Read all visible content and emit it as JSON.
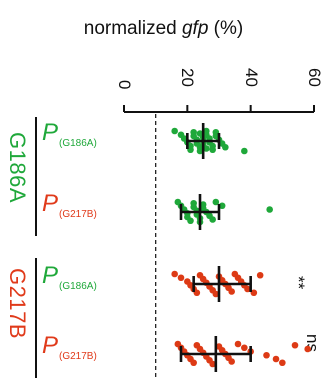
{
  "chart_data": {
    "type": "scatter",
    "title": "normalized",
    "title_italic": "gfp",
    "title_unit": " (%)",
    "value_axis": {
      "ticks": [
        "0",
        "20",
        "40",
        "60"
      ],
      "range": [
        0,
        60
      ],
      "orientation": "rotated-90"
    },
    "reference_line": {
      "value": 10,
      "style": "dashed"
    },
    "groups": [
      {
        "gene": "G186A",
        "gene_color": "#1fa83a",
        "rows": [
          {
            "promoter": "P",
            "variant": "(G186A)",
            "label_color": "#1fa83a",
            "point_color": "#1fa83a",
            "mean": 25,
            "sd_low": 20,
            "sd_high": 30,
            "points": [
              16,
              18,
              19,
              20,
              21,
              21,
              22,
              22,
              23,
              23,
              24,
              24,
              24,
              25,
              25,
              25,
              26,
              26,
              26,
              27,
              27,
              28,
              28,
              29,
              29,
              30,
              31,
              32,
              38
            ],
            "significance": ""
          },
          {
            "promoter": "P",
            "variant": "(G217B)",
            "label_color": "#e03a1a",
            "point_color": "#1fa83a",
            "mean": 24,
            "sd_low": 18,
            "sd_high": 30,
            "points": [
              17,
              18,
              19,
              20,
              20,
              21,
              22,
              22,
              23,
              23,
              24,
              24,
              25,
              25,
              26,
              27,
              28,
              29,
              31,
              46
            ],
            "significance": ""
          }
        ]
      },
      {
        "gene": "G217B",
        "gene_color": "#e03a1a",
        "rows": [
          {
            "promoter": "P",
            "variant": "(G186A)",
            "label_color": "#1fa83a",
            "point_color": "#dd3a15",
            "mean": 30,
            "sd_low": 22,
            "sd_high": 40,
            "points": [
              16,
              18,
              20,
              21,
              22,
              23,
              24,
              25,
              26,
              27,
              28,
              29,
              30,
              31,
              32,
              33,
              34,
              35,
              36,
              37,
              38,
              39,
              41,
              43
            ],
            "significance": "**"
          },
          {
            "promoter": "P",
            "variant": "(G217B)",
            "label_color": "#e03a1a",
            "point_color": "#dd3a15",
            "mean": 29,
            "sd_low": 18,
            "sd_high": 40,
            "points": [
              17,
              18,
              19,
              20,
              21,
              22,
              23,
              24,
              25,
              26,
              27,
              28,
              30,
              31,
              32,
              33,
              34,
              36,
              38,
              40,
              45,
              48,
              50,
              54,
              58
            ],
            "significance": "ns"
          }
        ]
      }
    ],
    "grid": false,
    "legend": "none"
  }
}
